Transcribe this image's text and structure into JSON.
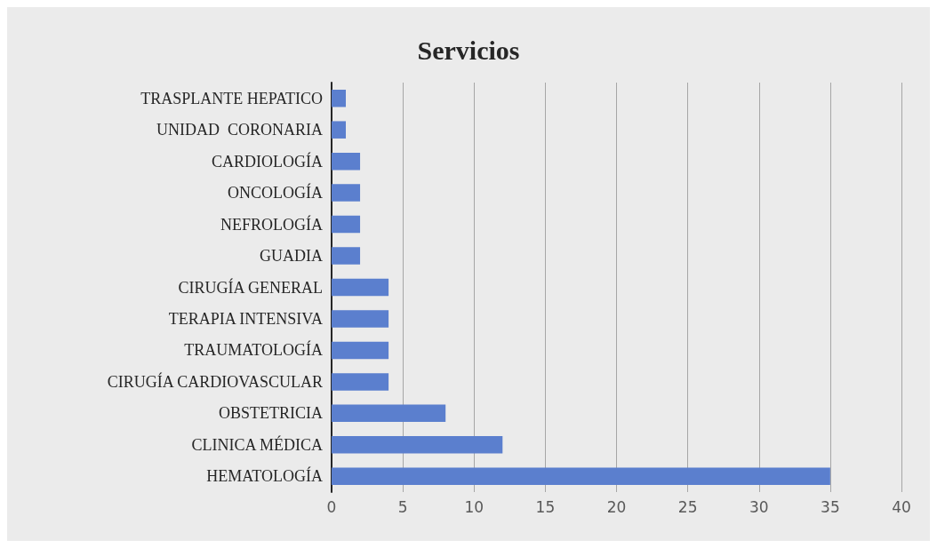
{
  "chart_data": {
    "type": "bar",
    "orientation": "horizontal",
    "title": "Servicios",
    "categories": [
      "TRASPLANTE HEPATICO",
      "UNIDAD  CORONARIA",
      "CARDIOLOGÍA",
      "ONCOLOGÍA",
      "NEFROLOGÍA",
      "GUADIA",
      "CIRUGÍA GENERAL",
      "TERAPIA INTENSIVA",
      "TRAUMATOLOGÍA",
      "CIRUGÍA CARDIOVASCULAR",
      "OBSTETRICIA",
      "CLINICA MÉDICA",
      "HEMATOLOGÍA"
    ],
    "values": [
      1,
      1,
      2,
      2,
      2,
      2,
      4,
      4,
      4,
      4,
      8,
      12,
      35
    ],
    "color": "#5b7fce",
    "xlim": [
      0,
      40
    ],
    "xticks": [
      0,
      5,
      10,
      15,
      20,
      25,
      30,
      35,
      40
    ],
    "grid": "x"
  }
}
